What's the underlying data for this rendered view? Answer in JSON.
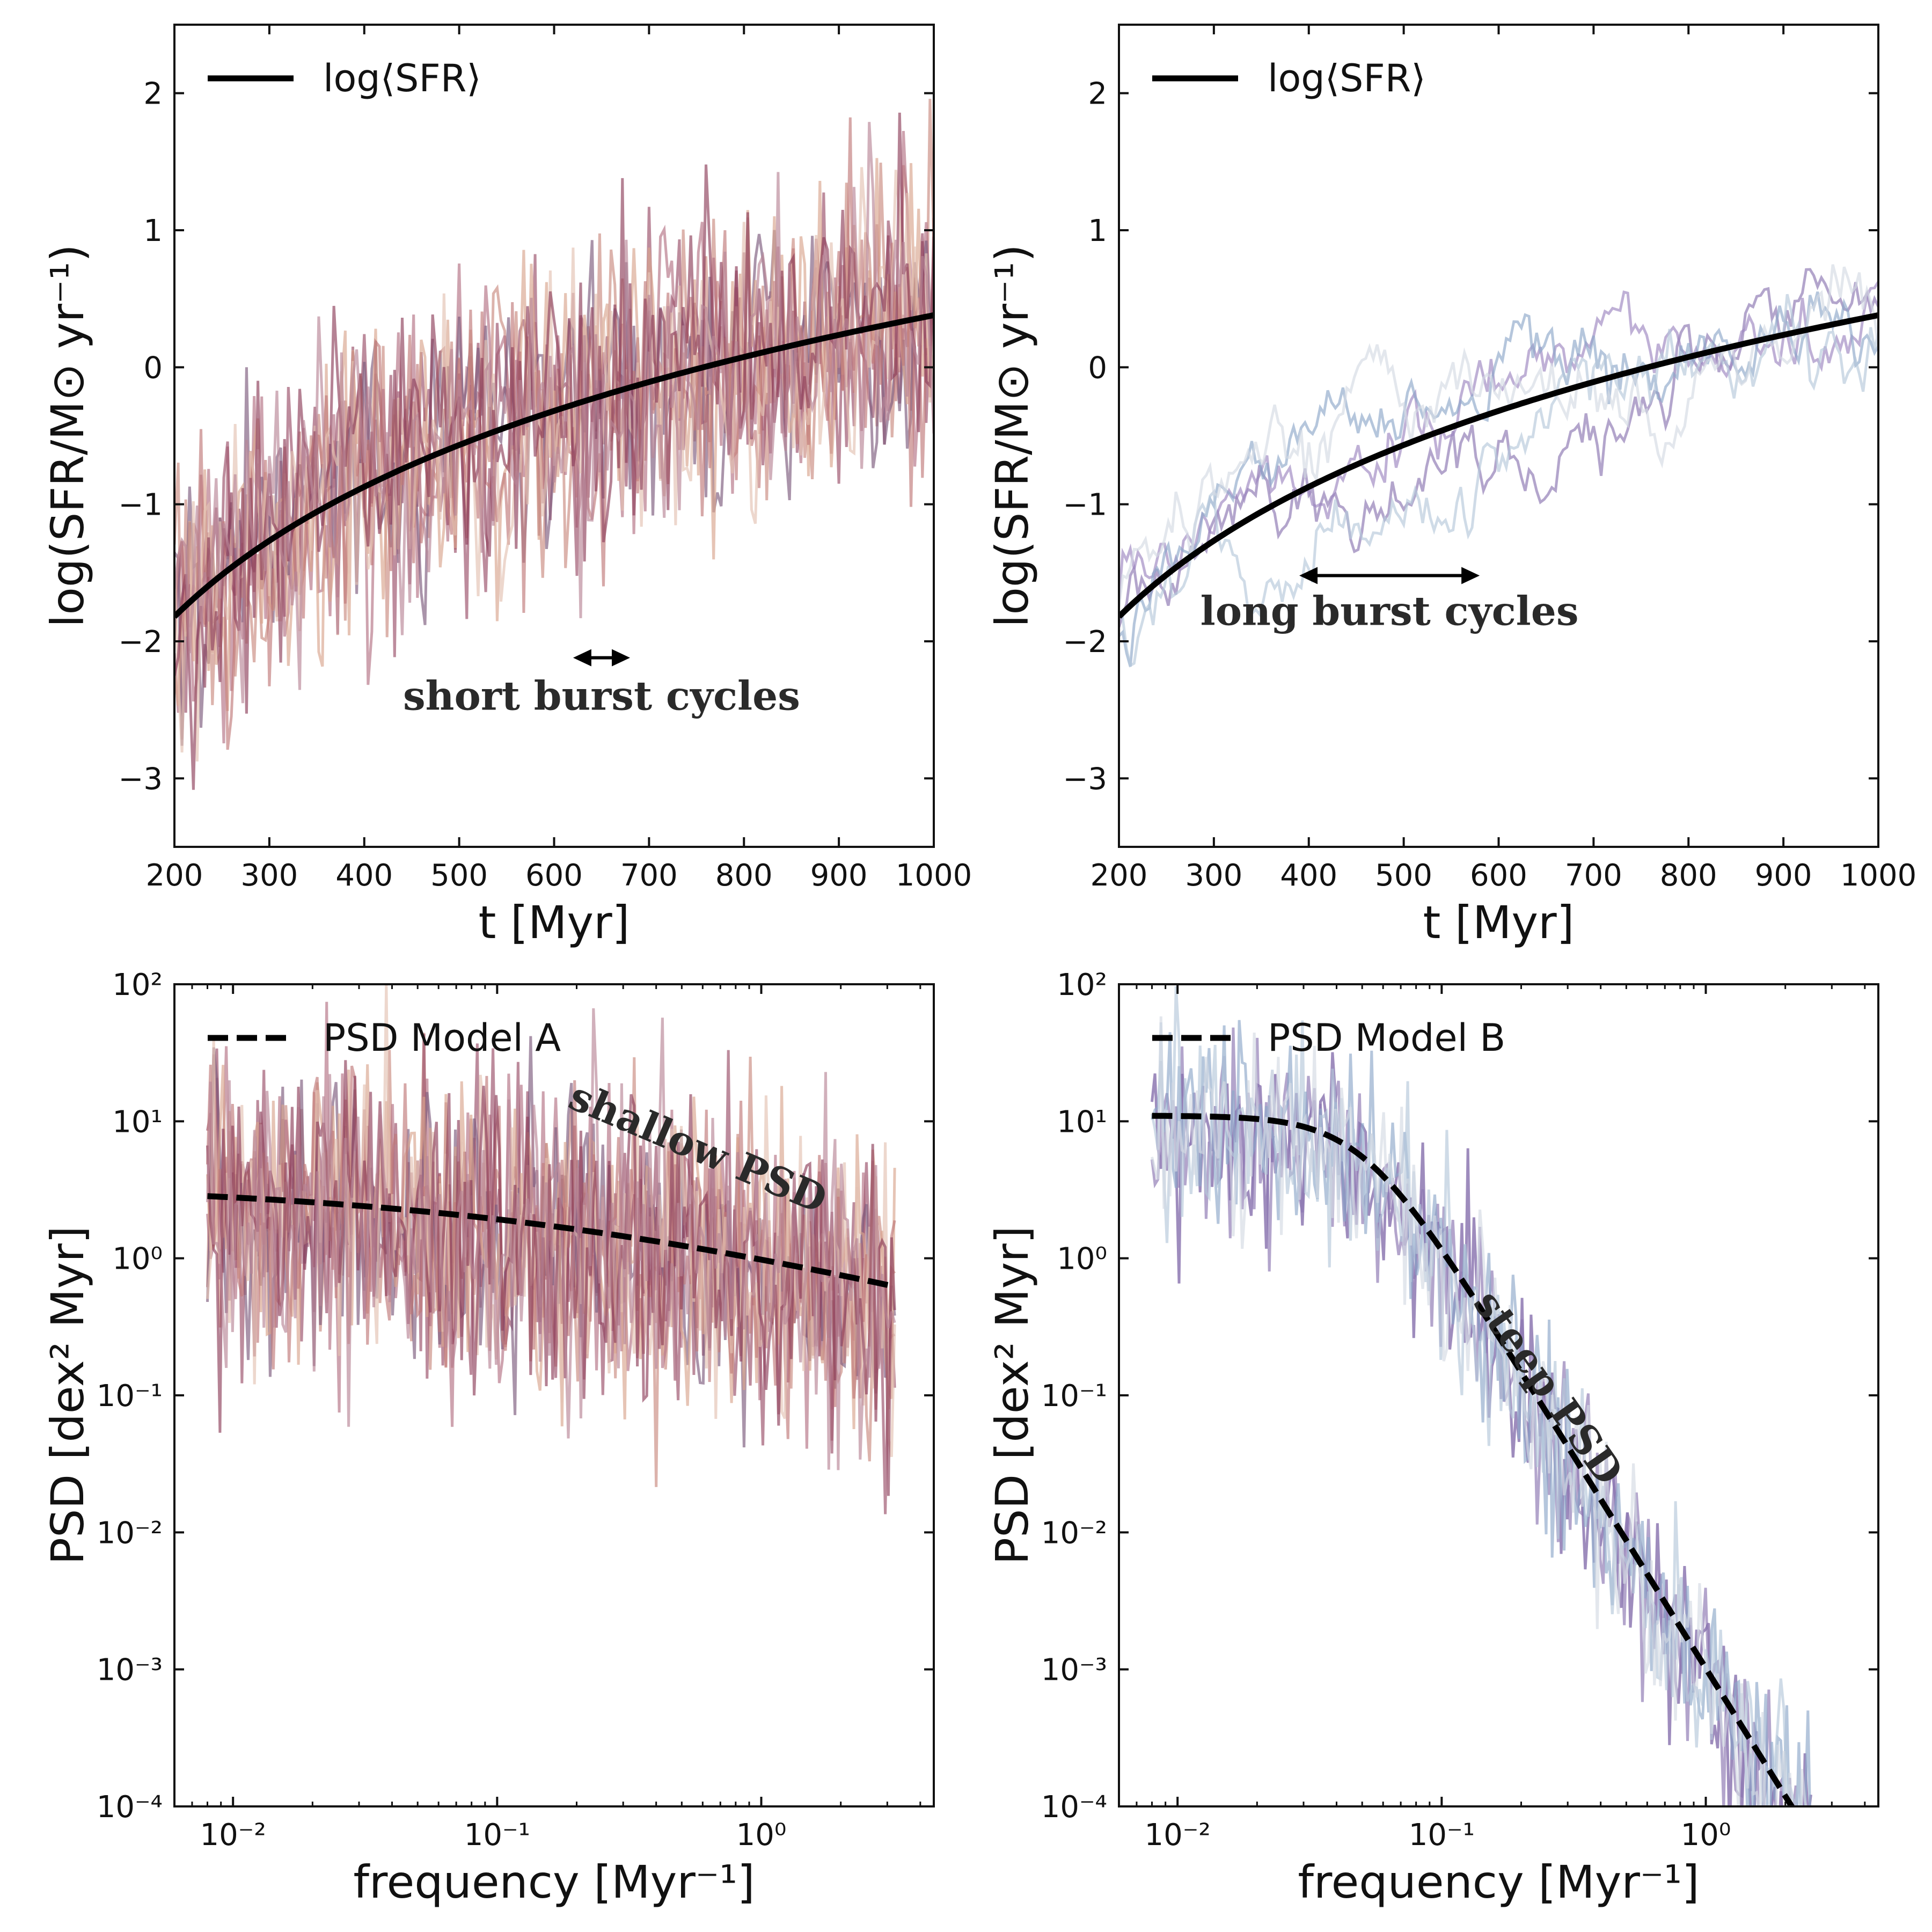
{
  "figure": {
    "title": ""
  },
  "chart_data": [
    {
      "id": "top-left",
      "type": "line",
      "title": "",
      "xlabel": "t [Myr]",
      "ylabel": "log(SFR/M⊙ yr⁻¹)",
      "xscale": "linear",
      "yscale": "linear",
      "xlim": [
        200,
        1000
      ],
      "ylim": [
        -3.5,
        2.5
      ],
      "xticks": [
        200,
        300,
        400,
        500,
        600,
        700,
        800,
        900,
        1000
      ],
      "xtick_labels": [
        "200",
        "300",
        "400",
        "500",
        "600",
        "700",
        "800",
        "900",
        "1000"
      ],
      "yticks": [
        -3,
        -2,
        -1,
        0,
        1,
        2
      ],
      "ytick_labels": [
        "−3",
        "−2",
        "−1",
        "0",
        "1",
        "2"
      ],
      "legend": {
        "position": "top-left",
        "entries": [
          {
            "label": "log⟨SFR⟩",
            "style": "solid"
          }
        ]
      },
      "annotation": {
        "text": "short burst cycles",
        "arrow_from": 620,
        "arrow_to": 680,
        "arrow_y": -2.12,
        "text_x": 650,
        "text_y": -2.5,
        "rotation": 0
      },
      "mean_curve": {
        "name": "log⟨SFR⟩",
        "x_start": 200,
        "x_end": 1000,
        "y_start": -1.82,
        "y_end": 0.38,
        "shape": "log-rise"
      },
      "noise_series": {
        "count": 9,
        "amplitude": 0.55,
        "step_myr": 4,
        "colors": [
          "#c98b7f",
          "#b47284",
          "#9a4e69",
          "#7c5a7d",
          "#d9a48e",
          "#c07a79",
          "#e3c2b2",
          "#8e3f5a",
          "#b88596"
        ]
      }
    },
    {
      "id": "top-right",
      "type": "line",
      "title": "",
      "xlabel": "t [Myr]",
      "ylabel": "log(SFR/M⊙ yr⁻¹)",
      "xscale": "linear",
      "yscale": "linear",
      "xlim": [
        200,
        1000
      ],
      "ylim": [
        -3.5,
        2.5
      ],
      "xticks": [
        200,
        300,
        400,
        500,
        600,
        700,
        800,
        900,
        1000
      ],
      "xtick_labels": [
        "200",
        "300",
        "400",
        "500",
        "600",
        "700",
        "800",
        "900",
        "1000"
      ],
      "yticks": [
        -3,
        -2,
        -1,
        0,
        1,
        2
      ],
      "ytick_labels": [
        "−3",
        "−2",
        "−1",
        "0",
        "1",
        "2"
      ],
      "legend": {
        "position": "top-left",
        "entries": [
          {
            "label": "log⟨SFR⟩",
            "style": "solid"
          }
        ]
      },
      "annotation": {
        "text": "long burst cycles",
        "arrow_from": 390,
        "arrow_to": 580,
        "arrow_y": -1.52,
        "text_x": 485,
        "text_y": -1.88,
        "rotation": 0
      },
      "mean_curve": {
        "name": "log⟨SFR⟩",
        "x_start": 200,
        "x_end": 1000,
        "y_start": -1.82,
        "y_end": 0.38,
        "shape": "log-rise"
      },
      "noise_series": {
        "count": 5,
        "amplitude": 0.45,
        "step_myr": 4,
        "colors": [
          "#8a74b0",
          "#9c86c0",
          "#8ea7c9",
          "#b6c7da",
          "#d4dae4"
        ]
      }
    },
    {
      "id": "bottom-left",
      "type": "line",
      "title": "",
      "xlabel": "frequency [Myr⁻¹]",
      "ylabel": "PSD [dex² Myr]",
      "xscale": "log",
      "yscale": "log",
      "xlim": [
        0.006,
        4.5
      ],
      "ylim": [
        0.0001,
        100
      ],
      "xticks": [
        0.01,
        0.1,
        1
      ],
      "xtick_labels": [
        "10⁻²",
        "10⁻¹",
        "10⁰"
      ],
      "yticks": [
        0.0001,
        0.001,
        0.01,
        0.1,
        1,
        10,
        100
      ],
      "ytick_labels": [
        "10⁻⁴",
        "10⁻³",
        "10⁻²",
        "10⁻¹",
        "10⁰",
        "10¹",
        "10²"
      ],
      "legend": {
        "position": "top-left",
        "entries": [
          {
            "label": "PSD Model A",
            "style": "dashed"
          }
        ]
      },
      "annotation": {
        "text": "shallow PSD",
        "text_x": 0.55,
        "text_y": 5.2,
        "rotation": 23
      },
      "model_curve": {
        "name": "PSD Model A",
        "A": 3.5,
        "f_break": 0.15,
        "slope": 0.5,
        "f_min": 0.008,
        "f_max": 3.2
      },
      "noise_series": {
        "count": 9,
        "scatter_dex": 0.55,
        "f_min": 0.008,
        "f_max": 3.2,
        "colors": [
          "#c98b7f",
          "#b47284",
          "#9a4e69",
          "#7c5a7d",
          "#d9a48e",
          "#c07a79",
          "#e3c2b2",
          "#8e3f5a",
          "#b88596"
        ]
      }
    },
    {
      "id": "bottom-right",
      "type": "line",
      "title": "",
      "xlabel": "frequency [Myr⁻¹]",
      "ylabel": "PSD [dex² Myr]",
      "xscale": "log",
      "yscale": "log",
      "xlim": [
        0.006,
        4.5
      ],
      "ylim": [
        0.0001,
        100
      ],
      "xticks": [
        0.01,
        0.1,
        1
      ],
      "xtick_labels": [
        "10⁻²",
        "10⁻¹",
        "10⁰"
      ],
      "yticks": [
        0.0001,
        0.001,
        0.01,
        0.1,
        1,
        10,
        100
      ],
      "ytick_labels": [
        "10⁻⁴",
        "10⁻³",
        "10⁻²",
        "10⁻¹",
        "10⁰",
        "10¹",
        "10²"
      ],
      "legend": {
        "position": "top-left",
        "entries": [
          {
            "label": "PSD Model B",
            "style": "dashed"
          }
        ]
      },
      "annotation": {
        "text": "steep PSD",
        "text_x": 0.23,
        "text_y": 0.1,
        "rotation": 55
      },
      "model_curve": {
        "name": "PSD Model B",
        "A": 11,
        "f_break": 0.05,
        "slope": 3.1,
        "f_min": 0.008,
        "f_max": 2.5
      },
      "noise_series": {
        "count": 5,
        "scatter_dex": 0.35,
        "f_min": 0.008,
        "f_max": 2.5,
        "colors": [
          "#6a4f9a",
          "#8a74b0",
          "#8ea7c9",
          "#b6c7da",
          "#d4dae4"
        ]
      }
    }
  ]
}
